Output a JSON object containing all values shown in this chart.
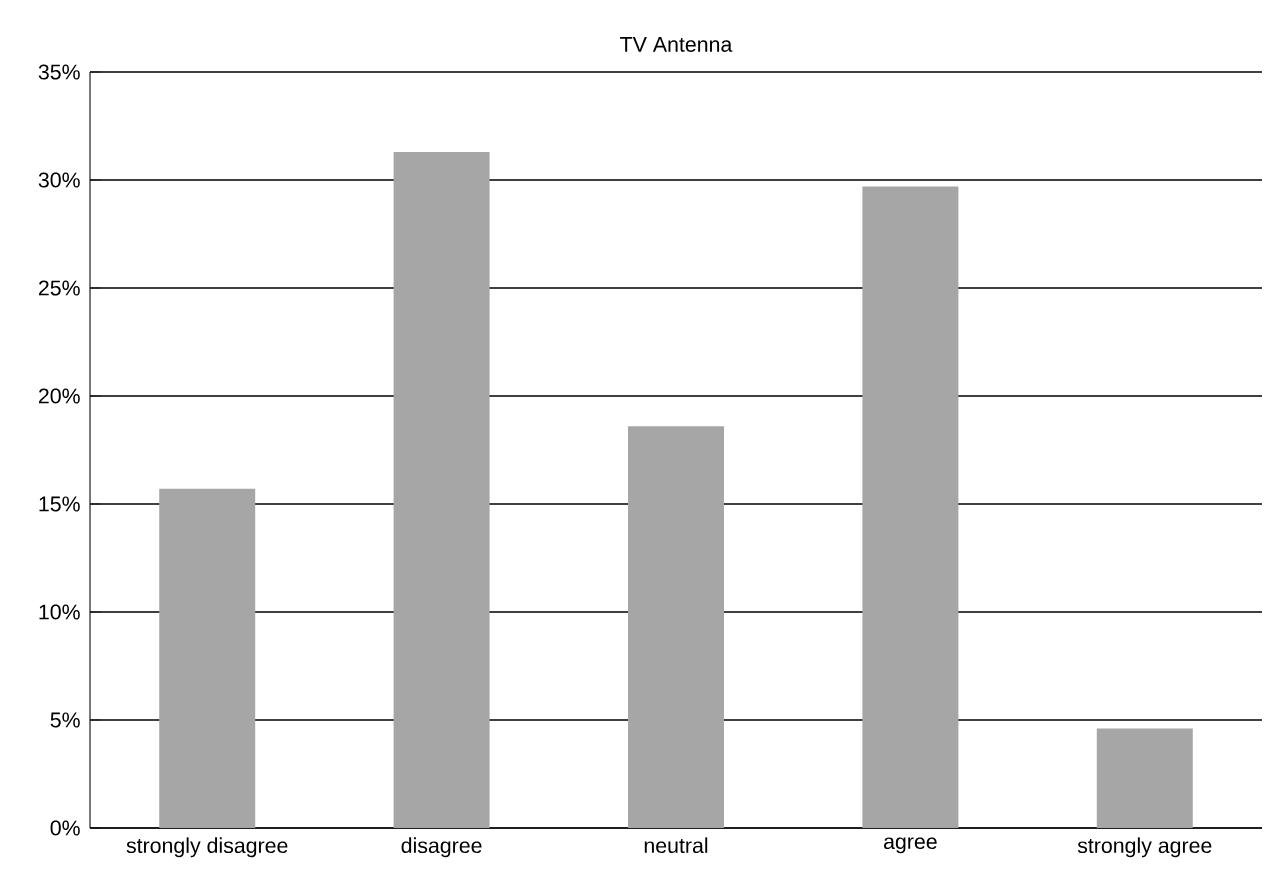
{
  "chart_data": {
    "type": "bar",
    "title": "TV Antenna",
    "categories": [
      "strongly disagree",
      "disagree",
      "neutral",
      "agree",
      "strongly agree"
    ],
    "values": [
      15.7,
      31.3,
      18.6,
      29.7,
      4.6
    ],
    "color": "#a6a6a6",
    "ylim": [
      0,
      35
    ],
    "yticks": [
      {
        "value": 0,
        "label": "0%"
      },
      {
        "value": 5,
        "label": "5%"
      },
      {
        "value": 10,
        "label": "10%"
      },
      {
        "value": 15,
        "label": "15%"
      },
      {
        "value": 20,
        "label": "20%"
      },
      {
        "value": 25,
        "label": "25%"
      },
      {
        "value": 30,
        "label": "30%"
      },
      {
        "value": 35,
        "label": "35%"
      }
    ],
    "grid": "y"
  }
}
